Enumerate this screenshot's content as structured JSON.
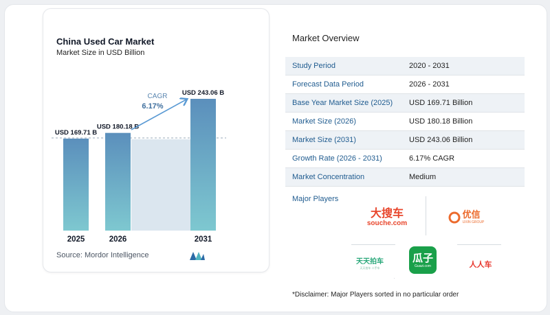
{
  "chart": {
    "title": "China Used Car Market",
    "subtitle": "Market Size in USD Billion",
    "source": "Source:  Mordor Intelligence",
    "cagr_label": "CAGR",
    "cagr_value": "6.17%"
  },
  "chart_data": {
    "type": "bar",
    "categories": [
      "2025",
      "2026",
      "2031"
    ],
    "values": [
      169.71,
      180.18,
      243.06
    ],
    "data_labels": [
      "USD 169.71 B",
      "USD 180.18 B",
      "USD 243.06 B"
    ],
    "title": "China Used Car Market",
    "subtitle": "Market Size in USD Billion",
    "xlabel": "",
    "ylabel": "",
    "ylim": [
      0,
      243.06
    ],
    "grid": false,
    "annotation": "CAGR 6.17%"
  },
  "overview": {
    "title": "Market Overview",
    "rows": [
      {
        "label": "Study Period",
        "value": "2020 - 2031"
      },
      {
        "label": "Forecast Data Period",
        "value": "2026 - 2031"
      },
      {
        "label": "Base Year Market Size (2025)",
        "value": "USD 169.71 Billion"
      },
      {
        "label": "Market Size (2026)",
        "value": "USD 180.18 Billion"
      },
      {
        "label": "Market Size (2031)",
        "value": "USD 243.06 Billion"
      },
      {
        "label": "Growth Rate (2026 - 2031)",
        "value": "6.17% CAGR"
      },
      {
        "label": "Market Concentration",
        "value": "Medium"
      }
    ]
  },
  "players": {
    "title": "Major Players",
    "logos": {
      "souche_cn": "大搜车",
      "souche_en": "souche.com",
      "uxin_cn": "优信",
      "uxin_en": "UXIN GROUP",
      "guazi_cn": "瓜子",
      "guazi_en": "Guazi.com",
      "ttpai_cn": "天天拍车",
      "ttpai_sub": "天天拍车 二手车",
      "renrenche_cn": "人人车"
    }
  },
  "disclaimer": "*Disclaimer: Major Players sorted in no particular order",
  "colors": {
    "bar_top": "#5b8fbc",
    "bar_bottom": "#7ec8d0",
    "shade": "#dbe6ef",
    "accent_blue": "#1f5b8f",
    "arrow": "#5a9ad4",
    "souche_red": "#e8462c",
    "uxin_orange": "#ec6b2d",
    "guazi_green": "#1aa04a",
    "ttpai_green": "#2aa87a",
    "renrenche_red": "#e8382f"
  }
}
